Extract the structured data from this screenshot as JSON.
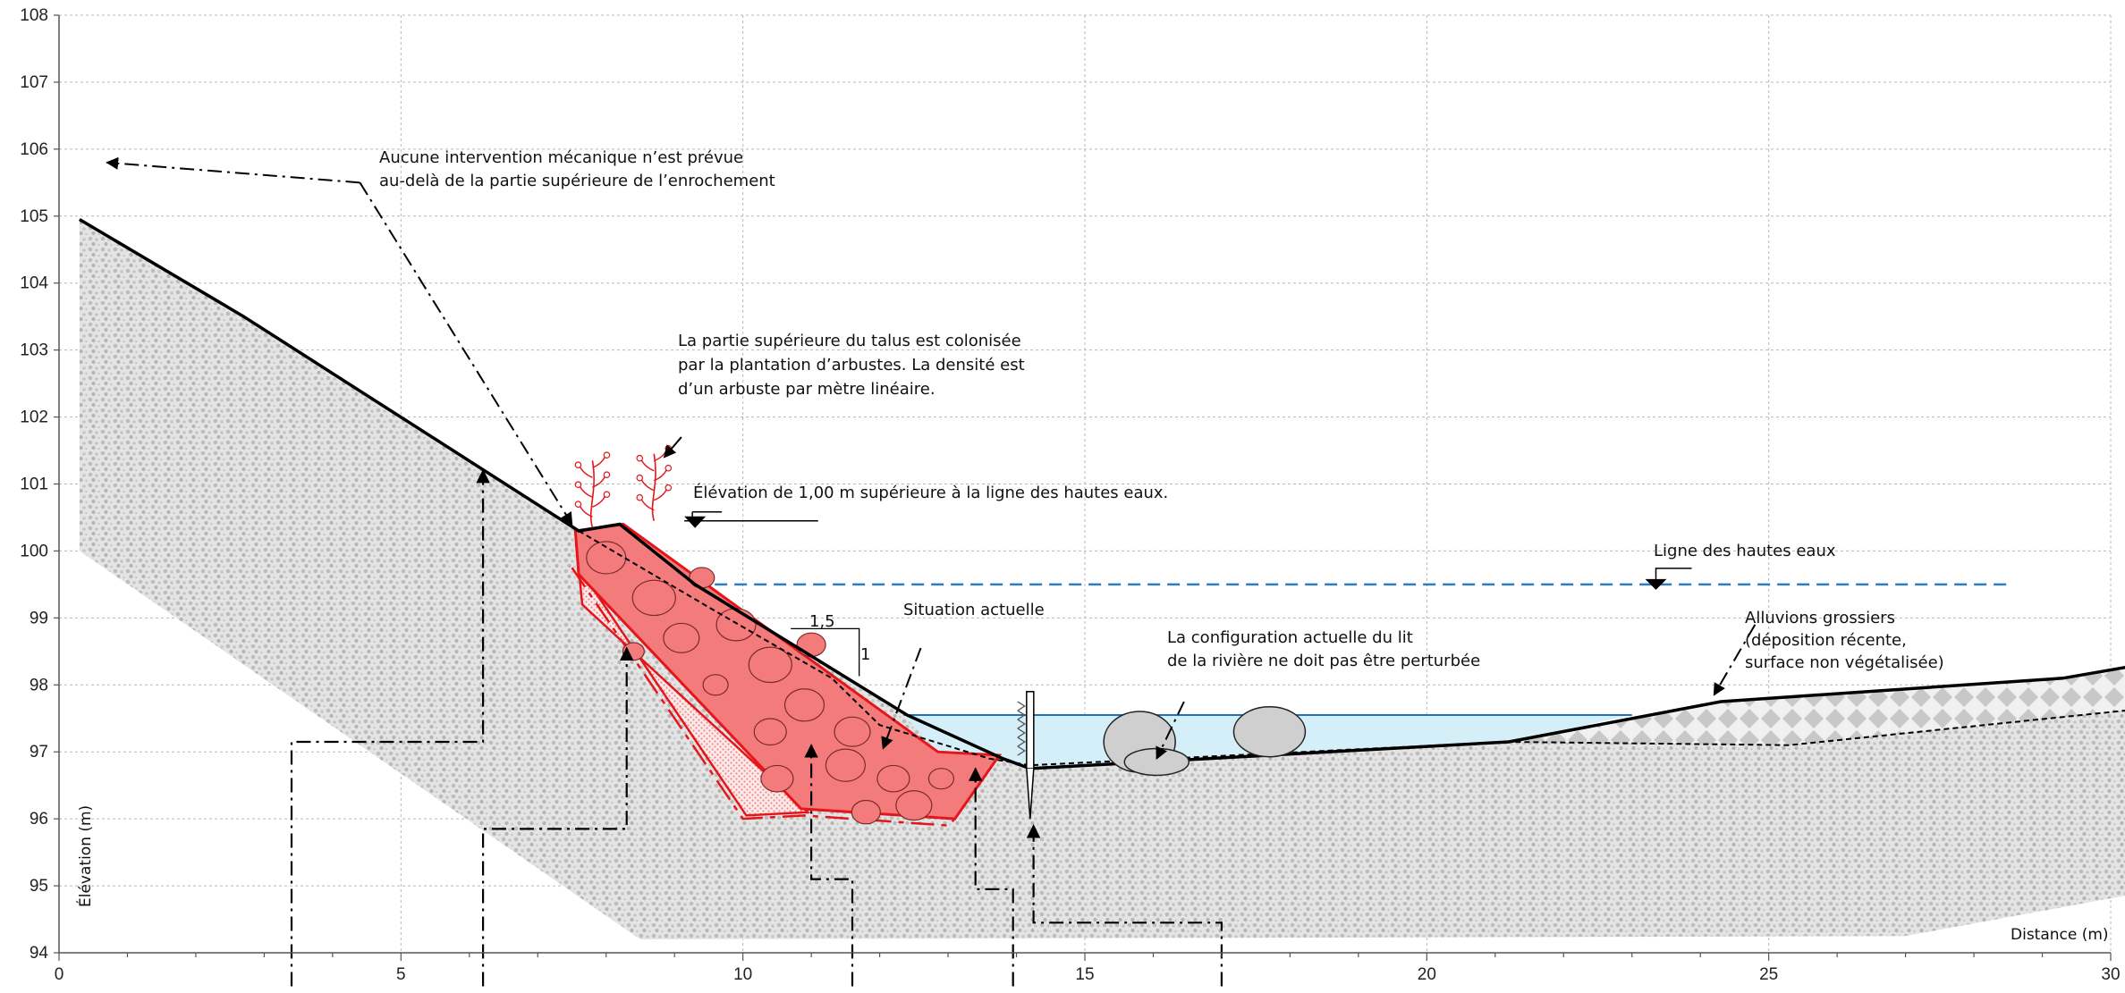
{
  "chart_data": {
    "type": "cross-section",
    "xlim": [
      0,
      30
    ],
    "ylim": [
      94,
      108
    ],
    "x_ticks": [
      "0",
      "5",
      "10",
      "15",
      "20",
      "25",
      "30"
    ],
    "y_ticks": [
      "94",
      "95",
      "96",
      "97",
      "98",
      "99",
      "100",
      "101",
      "102",
      "103",
      "104",
      "105",
      "106",
      "107",
      "108"
    ],
    "xlabel": "Distance (m)",
    "ylabel": "Élévation (m)",
    "grid": true,
    "high_water_level": 99.5,
    "current_water_level": 97.55,
    "slope_ratio": {
      "horizontal": "1,5",
      "vertical": "1"
    },
    "ground_profile": [
      [
        0.3,
        104.95
      ],
      [
        2.7,
        103.5
      ],
      [
        7.6,
        100.3
      ],
      [
        8.2,
        100.4
      ],
      [
        9.3,
        99.5
      ],
      [
        12.4,
        97.55
      ],
      [
        13.8,
        96.9
      ],
      [
        14.2,
        96.75
      ],
      [
        21.2,
        97.15
      ],
      [
        24.3,
        97.75
      ],
      [
        29.3,
        98.1
      ],
      [
        31,
        98.4
      ]
    ],
    "existing_profile": [
      [
        7.6,
        100.3
      ],
      [
        9.6,
        99.1
      ],
      [
        11.3,
        98.1
      ],
      [
        12,
        97.4
      ],
      [
        13.6,
        96.9
      ],
      [
        14.2,
        96.8
      ],
      [
        21.2,
        97.15
      ],
      [
        25.3,
        97.1
      ],
      [
        31,
        97.7
      ]
    ],
    "riprap_outline": [
      [
        7.55,
        100.3
      ],
      [
        8.25,
        100.4
      ],
      [
        12.85,
        97.0
      ],
      [
        13.75,
        96.95
      ],
      [
        13.1,
        96.0
      ],
      [
        10.85,
        96.15
      ],
      [
        7.6,
        99.65
      ]
    ],
    "filter_outline": [
      [
        7.6,
        99.75
      ],
      [
        10.05,
        96.05
      ],
      [
        10.95,
        96.1
      ],
      [
        7.65,
        99.2
      ]
    ],
    "stakes": [
      {
        "x": [
          3.4,
          6.2
        ],
        "y_top": 97.15
      },
      {
        "x": [
          6.2,
          8.3
        ],
        "y_top": 95.85
      },
      {
        "x": [
          11.0,
          11.6
        ],
        "y_top": 95.1
      },
      {
        "x": [
          13.4,
          13.95
        ],
        "y_top": 94.95
      },
      {
        "x": [
          14.25,
          17.0
        ],
        "y_top": 94.45
      }
    ],
    "annotations": {
      "no_intervention": [
        "Aucune intervention mécanique n’est prévue",
        "au-delà de la partie supérieure de l’enrochement"
      ],
      "shrubs": [
        "La partie supérieure du talus est colonisée",
        "par la plantation d’arbustes. La densité est",
        "d’un arbuste par mètre linéaire."
      ],
      "elevation_note": "Élévation de 1,00 m supérieure à la ligne des hautes eaux.",
      "high_water": "Ligne des hautes eaux",
      "current_situation": "Situation actuelle",
      "bed_config": [
        "La configuration actuelle du lit",
        "de la rivière ne doit pas être perturbée"
      ],
      "alluvions": [
        "Alluvions grossiers",
        "(déposition récente,",
        "surface non végétalisée)"
      ]
    }
  },
  "colors": {
    "riprap_fill": "#f47b7b",
    "riprap_stroke": "#e4161b",
    "water_fill": "#d4eff8",
    "water_line": "#1f73b7",
    "high_water_line": "#2e7dbf",
    "soil_fill": "#d9d9d9",
    "boulder_fill": "#cfcfcf"
  }
}
